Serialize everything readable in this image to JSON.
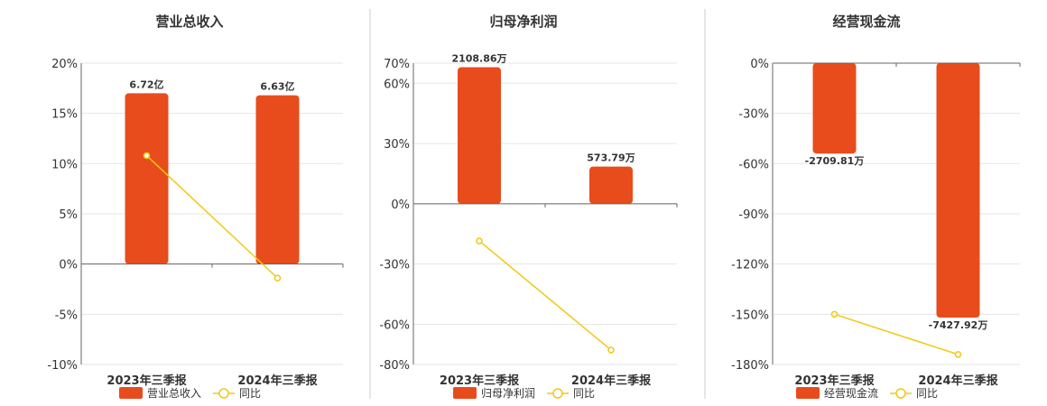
{
  "chart_data": [
    {
      "type": "bar",
      "title": "营业总收入",
      "categories": [
        "2023年三季报",
        "2024年三季报"
      ],
      "series": [
        {
          "name": "营业总收入",
          "type": "bar",
          "values": [
            17.0,
            16.8
          ],
          "labels": [
            "6.72亿",
            "6.63亿"
          ],
          "color": "#e84c1c"
        },
        {
          "name": "同比",
          "type": "line",
          "values": [
            10.8,
            -1.4
          ],
          "color": "#f2c811"
        }
      ],
      "ylim": [
        -10,
        20
      ],
      "yticks": [
        -10,
        -5,
        0,
        5,
        10,
        15,
        20
      ],
      "ytick_labels": [
        "-10%",
        "-5%",
        "0%",
        "5%",
        "10%",
        "15%",
        "20%"
      ],
      "grid": true,
      "legend": "bottom"
    },
    {
      "type": "bar",
      "title": "归母净利润",
      "categories": [
        "2023年三季报",
        "2024年三季报"
      ],
      "series": [
        {
          "name": "归母净利润",
          "type": "bar",
          "values": [
            68,
            18.5
          ],
          "labels": [
            "2108.86万",
            "573.79万"
          ],
          "color": "#e84c1c"
        },
        {
          "name": "同比",
          "type": "line",
          "values": [
            -18.5,
            -72.8
          ],
          "color": "#f2c811"
        }
      ],
      "ylim": [
        -80,
        70
      ],
      "yticks": [
        -80,
        -60,
        -30,
        0,
        30,
        60,
        70
      ],
      "ytick_labels": [
        "-80%",
        "-60%",
        "-30%",
        "0%",
        "30%",
        "60%",
        "70%"
      ],
      "grid": true,
      "legend": "bottom"
    },
    {
      "type": "bar",
      "title": "经营现金流",
      "categories": [
        "2023年三季报",
        "2024年三季报"
      ],
      "series": [
        {
          "name": "经营现金流",
          "type": "bar",
          "values": [
            -54,
            -152
          ],
          "labels": [
            "-2709.81万",
            "-7427.92万"
          ],
          "color": "#e84c1c"
        },
        {
          "name": "同比",
          "type": "line",
          "values": [
            -150,
            -174
          ],
          "color": "#f2c811"
        }
      ],
      "ylim": [
        -180,
        0
      ],
      "yticks": [
        -180,
        -150,
        -120,
        -90,
        -60,
        -30,
        0
      ],
      "ytick_labels": [
        "-180%",
        "-150%",
        "-120%",
        "-90%",
        "-60%",
        "-30%",
        "0%"
      ],
      "grid": true,
      "legend": "bottom"
    }
  ]
}
